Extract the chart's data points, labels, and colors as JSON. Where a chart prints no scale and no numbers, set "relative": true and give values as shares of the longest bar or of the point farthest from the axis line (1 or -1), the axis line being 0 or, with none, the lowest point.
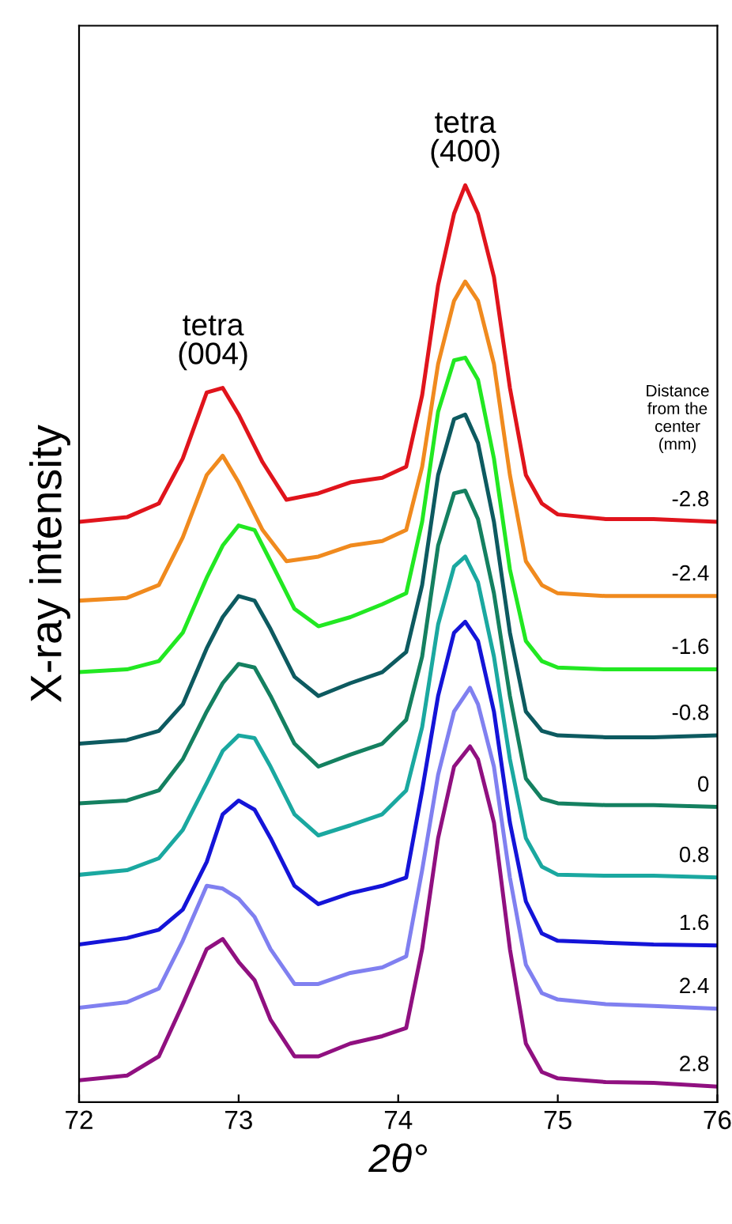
{
  "chart_data": {
    "type": "line",
    "relative": true,
    "xlabel": "2θ°",
    "ylabel": "X-ray intensity",
    "legend_title": "Distance\nfrom the\ncenter\n(mm)",
    "xlim": [
      72,
      76
    ],
    "xticks": [
      72,
      73,
      74,
      75,
      76
    ],
    "grid": false,
    "legend": false,
    "annotations": [
      {
        "text": "tetra\n(004)",
        "x": 72.84,
        "y": 0.779
      },
      {
        "text": "tetra\n(400)",
        "x": 74.42,
        "y": 1.0
      }
    ],
    "series": [
      {
        "name": "-2.8",
        "color": "#e0141c",
        "x": [
          72,
          72.3,
          72.5,
          72.65,
          72.8,
          72.9,
          73.0,
          73.15,
          73.3,
          73.5,
          73.7,
          73.9,
          74.05,
          74.15,
          74.25,
          74.35,
          74.42,
          74.5,
          74.6,
          74.7,
          74.8,
          74.9,
          75.0,
          75.3,
          75.6,
          76.0
        ],
        "values": [
          0.633,
          0.638,
          0.653,
          0.702,
          0.774,
          0.779,
          0.75,
          0.698,
          0.657,
          0.664,
          0.676,
          0.681,
          0.693,
          0.771,
          0.891,
          0.969,
          1.0,
          0.969,
          0.9,
          0.779,
          0.684,
          0.653,
          0.641,
          0.636,
          0.636,
          0.633
        ]
      },
      {
        "name": "-2.4",
        "color": "#f08a1e",
        "x": [
          72,
          72.3,
          72.5,
          72.65,
          72.8,
          72.9,
          73.0,
          73.15,
          73.3,
          73.5,
          73.7,
          73.9,
          74.05,
          74.15,
          74.25,
          74.35,
          74.42,
          74.5,
          74.6,
          74.7,
          74.8,
          74.9,
          75.0,
          75.3,
          75.6,
          76.0
        ],
        "values": [
          0.547,
          0.55,
          0.564,
          0.616,
          0.684,
          0.705,
          0.676,
          0.624,
          0.59,
          0.595,
          0.607,
          0.612,
          0.624,
          0.693,
          0.805,
          0.874,
          0.895,
          0.874,
          0.805,
          0.684,
          0.59,
          0.564,
          0.555,
          0.552,
          0.552,
          0.552
        ]
      },
      {
        "name": "-1.6",
        "color": "#22e822",
        "x": [
          72,
          72.3,
          72.5,
          72.65,
          72.8,
          72.9,
          73.0,
          73.1,
          73.2,
          73.35,
          73.5,
          73.7,
          73.9,
          74.05,
          74.15,
          74.25,
          74.35,
          74.42,
          74.5,
          74.6,
          74.7,
          74.8,
          74.9,
          75.0,
          75.3,
          75.6,
          76.0
        ],
        "values": [
          0.469,
          0.472,
          0.481,
          0.512,
          0.572,
          0.607,
          0.629,
          0.624,
          0.59,
          0.538,
          0.519,
          0.529,
          0.543,
          0.555,
          0.633,
          0.753,
          0.809,
          0.812,
          0.788,
          0.702,
          0.581,
          0.503,
          0.481,
          0.474,
          0.472,
          0.472,
          0.472
        ]
      },
      {
        "name": "-0.8",
        "color": "#0d5a60",
        "x": [
          72,
          72.3,
          72.5,
          72.65,
          72.8,
          72.9,
          73.0,
          73.1,
          73.2,
          73.35,
          73.5,
          73.7,
          73.9,
          74.05,
          74.15,
          74.25,
          74.35,
          74.42,
          74.5,
          74.6,
          74.7,
          74.8,
          74.9,
          75.0,
          75.3,
          75.6,
          76.0
        ],
        "values": [
          0.391,
          0.395,
          0.405,
          0.434,
          0.495,
          0.529,
          0.552,
          0.547,
          0.516,
          0.464,
          0.443,
          0.457,
          0.469,
          0.491,
          0.564,
          0.684,
          0.745,
          0.75,
          0.719,
          0.633,
          0.512,
          0.426,
          0.405,
          0.4,
          0.398,
          0.398,
          0.4
        ]
      },
      {
        "name": "0",
        "color": "#148060",
        "x": [
          72,
          72.3,
          72.5,
          72.65,
          72.8,
          72.9,
          73.0,
          73.1,
          73.2,
          73.35,
          73.5,
          73.7,
          73.9,
          74.05,
          74.15,
          74.25,
          74.35,
          74.42,
          74.5,
          74.6,
          74.7,
          74.8,
          74.9,
          75.0,
          75.3,
          75.6,
          76.0
        ],
        "values": [
          0.326,
          0.329,
          0.34,
          0.374,
          0.426,
          0.457,
          0.478,
          0.474,
          0.443,
          0.391,
          0.366,
          0.379,
          0.391,
          0.417,
          0.486,
          0.607,
          0.664,
          0.667,
          0.636,
          0.555,
          0.443,
          0.353,
          0.331,
          0.326,
          0.324,
          0.324,
          0.322
        ]
      },
      {
        "name": "0.8",
        "color": "#1aa8a0",
        "x": [
          72,
          72.3,
          72.5,
          72.65,
          72.8,
          72.9,
          73.0,
          73.1,
          73.2,
          73.35,
          73.5,
          73.7,
          73.9,
          74.05,
          74.15,
          74.25,
          74.35,
          74.42,
          74.5,
          74.6,
          74.7,
          74.8,
          74.9,
          75.0,
          75.3,
          75.6,
          76.0
        ],
        "values": [
          0.248,
          0.253,
          0.266,
          0.297,
          0.348,
          0.383,
          0.4,
          0.397,
          0.366,
          0.314,
          0.291,
          0.302,
          0.314,
          0.34,
          0.409,
          0.521,
          0.584,
          0.595,
          0.567,
          0.486,
          0.374,
          0.288,
          0.257,
          0.248,
          0.247,
          0.247,
          0.245
        ]
      },
      {
        "name": "1.6",
        "color": "#1414d8",
        "x": [
          72,
          72.3,
          72.5,
          72.65,
          72.8,
          72.9,
          73.0,
          73.1,
          73.2,
          73.35,
          73.5,
          73.7,
          73.9,
          74.05,
          74.15,
          74.25,
          74.35,
          74.42,
          74.5,
          74.6,
          74.7,
          74.8,
          74.9,
          75.0,
          75.3,
          75.6,
          76.0
        ],
        "values": [
          0.172,
          0.179,
          0.188,
          0.21,
          0.262,
          0.314,
          0.329,
          0.319,
          0.288,
          0.236,
          0.216,
          0.228,
          0.236,
          0.245,
          0.34,
          0.443,
          0.512,
          0.524,
          0.503,
          0.426,
          0.305,
          0.219,
          0.184,
          0.176,
          0.174,
          0.172,
          0.171
        ]
      },
      {
        "name": "2.4",
        "color": "#8080f0",
        "x": [
          72,
          72.3,
          72.5,
          72.65,
          72.8,
          72.9,
          73.0,
          73.1,
          73.2,
          73.35,
          73.5,
          73.7,
          73.9,
          74.05,
          74.15,
          74.25,
          74.35,
          74.45,
          74.5,
          74.6,
          74.7,
          74.8,
          74.9,
          75.0,
          75.3,
          75.6,
          76.0
        ],
        "values": [
          0.103,
          0.109,
          0.124,
          0.176,
          0.236,
          0.233,
          0.222,
          0.202,
          0.167,
          0.129,
          0.129,
          0.141,
          0.147,
          0.159,
          0.253,
          0.357,
          0.426,
          0.452,
          0.434,
          0.366,
          0.245,
          0.15,
          0.119,
          0.112,
          0.107,
          0.105,
          0.102
        ]
      },
      {
        "name": "2.8",
        "color": "#901080",
        "x": [
          72,
          72.3,
          72.5,
          72.65,
          72.8,
          72.9,
          73.0,
          73.1,
          73.2,
          73.35,
          73.5,
          73.7,
          73.9,
          74.05,
          74.15,
          74.25,
          74.35,
          74.45,
          74.5,
          74.6,
          74.7,
          74.8,
          74.9,
          75.0,
          75.3,
          75.6,
          76.0
        ],
        "values": [
          0.024,
          0.029,
          0.05,
          0.107,
          0.167,
          0.178,
          0.153,
          0.133,
          0.09,
          0.05,
          0.05,
          0.064,
          0.072,
          0.081,
          0.167,
          0.288,
          0.366,
          0.388,
          0.374,
          0.305,
          0.167,
          0.064,
          0.033,
          0.026,
          0.022,
          0.021,
          0.017
        ]
      }
    ]
  }
}
